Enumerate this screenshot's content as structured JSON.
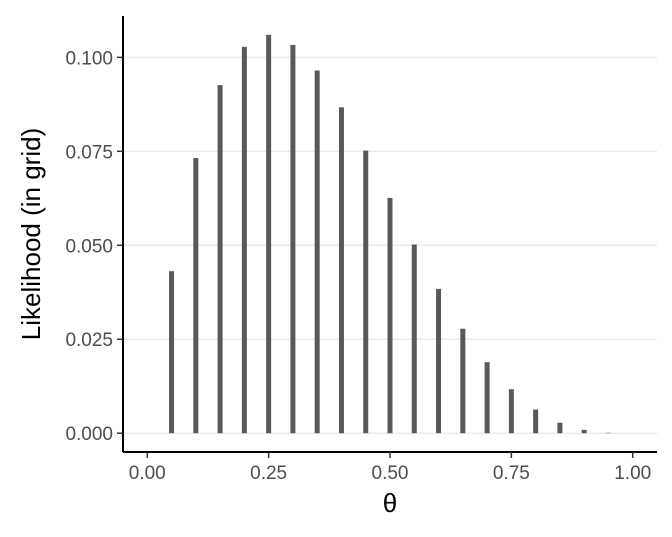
{
  "chart_data": {
    "type": "bar",
    "xlabel": "θ",
    "ylabel": "Likelihood (in grid)",
    "xlim": [
      -0.05,
      1.05
    ],
    "ylim": [
      -0.005,
      0.111
    ],
    "x_ticks": [
      0.0,
      0.25,
      0.5,
      0.75,
      1.0
    ],
    "x_tick_labels": [
      "0.00",
      "0.25",
      "0.50",
      "0.75",
      "1.00"
    ],
    "y_ticks": [
      0.0,
      0.025,
      0.05,
      0.075,
      0.1
    ],
    "y_tick_labels": [
      "0.000",
      "0.025",
      "0.050",
      "0.075",
      "0.100"
    ],
    "grid": "horizontal major lines",
    "bar_color": "#595959",
    "x": [
      0.05,
      0.1,
      0.15,
      0.2,
      0.25,
      0.3,
      0.35,
      0.4,
      0.45,
      0.5,
      0.55,
      0.6,
      0.65,
      0.7,
      0.75,
      0.8,
      0.85,
      0.9,
      0.95,
      1.0
    ],
    "values": [
      0.0431,
      0.0732,
      0.0926,
      0.1028,
      0.106,
      0.1033,
      0.0965,
      0.0867,
      0.0752,
      0.0626,
      0.0502,
      0.0384,
      0.0278,
      0.0189,
      0.0117,
      0.0063,
      0.0028,
      0.0009,
      0.0001,
      0.0
    ]
  }
}
